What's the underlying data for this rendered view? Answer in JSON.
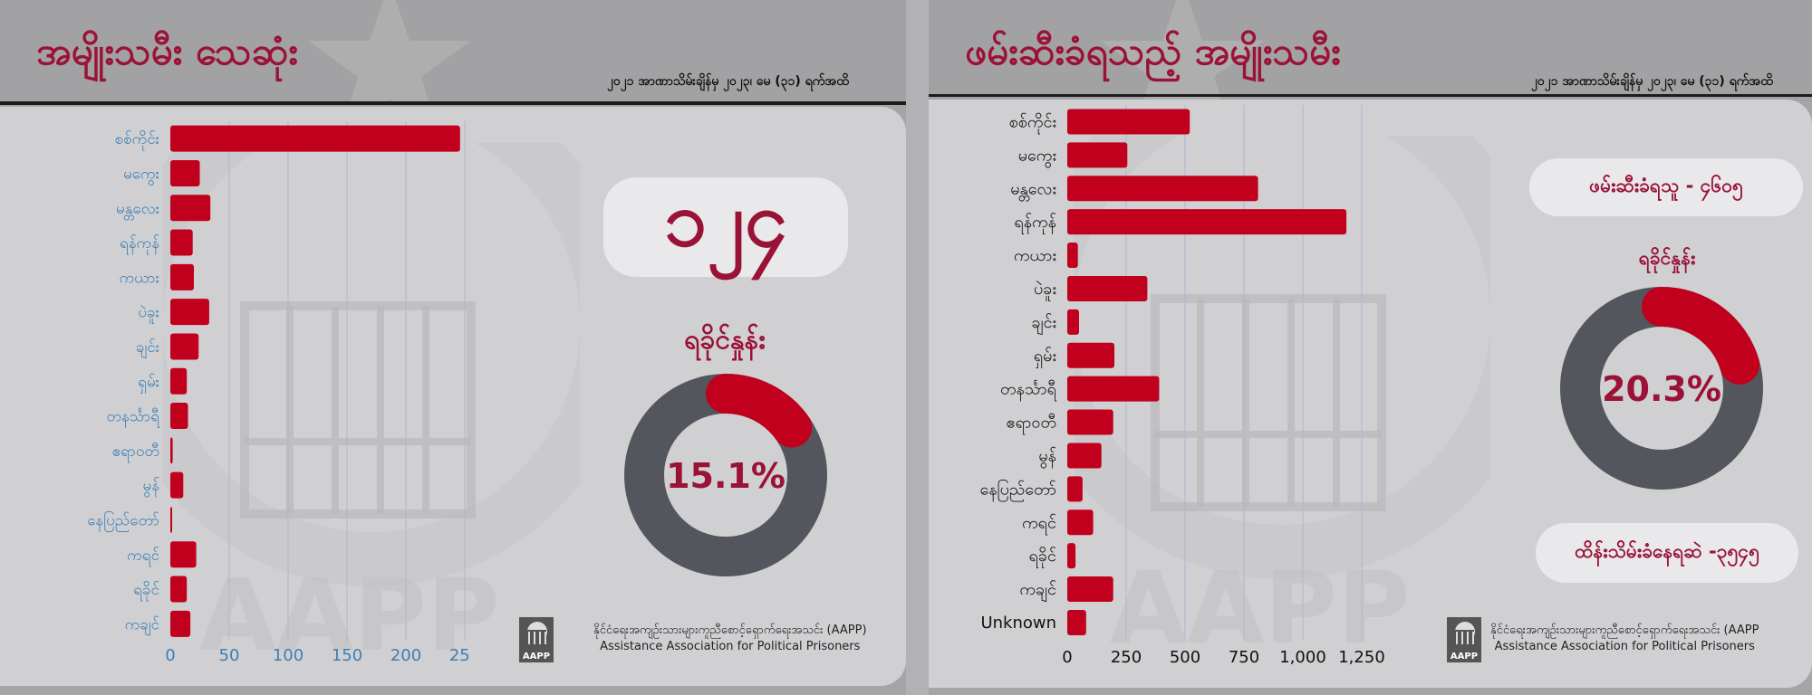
{
  "left": {
    "title": "အမျိုးသမီး သေဆုံး",
    "date_range": "၂၀၂၁ အာဏာသိမ်းချိန်မှ ၂၀၂၃၊ မေ (၃၁) ရက်အထိ",
    "total_badge": "၁၂၄",
    "region_label": "ရခိုင်နှုန်း",
    "percent_label": "15.1%",
    "percent_value": 15.1,
    "org_name_mm": "နိုင်ငံရေးအကျဉ်းသားများကူညီစောင့်ရှောက်ရေးအသင်း (AAPP)",
    "org_name_en": "Assistance Association for Political Prisoners",
    "logo_text": "AAPP"
  },
  "right": {
    "title": "ဖမ်းဆီးခံရသည့် အမျိုးသမီး",
    "date_range": "၂၀၂၁ အာဏာသိမ်းချိန်မှ ၂၀၂၃၊ မေ (၃၁) ရက်အထိ",
    "arrested_label": "ဖမ်းဆီးခံရသူ - ၄၆၀၅",
    "region_label": "ရခိုင်နှုန်း",
    "percent_label": "20.3%",
    "percent_value": 20.3,
    "detained_label": "ထိန်းသိမ်းခံနေရဆဲ -၃၅၄၅",
    "org_name_mm": "နိုင်ငံရေးအကျဉ်းသားများကူညီစောင့်ရှောက်ရေးအသင်း (AAPP",
    "org_name_en": "Assistance Association for Political Prisoners",
    "logo_text": "AAPP"
  },
  "colors": {
    "bar": "#c0001d",
    "accent": "#9b1237",
    "donut_track": "#54565d",
    "left_category_text": "#3d7fb5",
    "right_category_text": "#111111",
    "grid": "#a8b8cc"
  },
  "chart_data": [
    {
      "type": "bar",
      "orientation": "horizontal",
      "title": "",
      "xlabel": "",
      "ylabel": "",
      "categories": [
        "စစ်ကိုင်း",
        "မကွေး",
        "မန္တလေး",
        "ရန်ကုန်",
        "ကယား",
        "ပဲခူး",
        "ချင်း",
        "ရှမ်း",
        "တနင်္သာရီ",
        "ဧရာဝတီ",
        "မွန်",
        "နေပြည်တော်",
        "ကရင်",
        "ရခိုင်",
        "ကချင်"
      ],
      "values": [
        246,
        25,
        34,
        19,
        20,
        33,
        24,
        14,
        15,
        2,
        11,
        1,
        22,
        14,
        17
      ],
      "xlim": [
        0,
        260
      ],
      "ticks": [
        0,
        50,
        100,
        150,
        200,
        250
      ],
      "tick_labels": [
        "0",
        "50",
        "100",
        "150",
        "200",
        "250"
      ],
      "grid": true
    },
    {
      "type": "bar",
      "orientation": "horizontal",
      "title": "",
      "xlabel": "",
      "ylabel": "",
      "categories": [
        "စစ်ကိုင်း",
        "မကွေး",
        "မန္တလေး",
        "ရန်ကုန်",
        "ကယား",
        "ပဲခူး",
        "ချင်း",
        "ရှမ်း",
        "တနင်္သာရီ",
        "ဧရာဝတီ",
        "မွန်",
        "နေပြည်တော်",
        "ကရင်",
        "ရခိုင်",
        "ကချင်",
        "Unknown"
      ],
      "values": [
        520,
        255,
        810,
        1185,
        45,
        340,
        50,
        200,
        390,
        195,
        145,
        65,
        110,
        35,
        195,
        80
      ],
      "xlim": [
        0,
        1300
      ],
      "ticks": [
        0,
        250,
        500,
        750,
        1000,
        1250
      ],
      "tick_labels": [
        "0",
        "250",
        "500",
        "750",
        "1,000",
        "1,250"
      ],
      "grid": true
    },
    {
      "type": "pie",
      "variant": "donut",
      "categories": [
        "ရခိုင်",
        "other"
      ],
      "values": [
        15.1,
        84.9
      ]
    },
    {
      "type": "pie",
      "variant": "donut",
      "categories": [
        "ရခိုင်",
        "other"
      ],
      "values": [
        20.3,
        79.7
      ]
    }
  ]
}
